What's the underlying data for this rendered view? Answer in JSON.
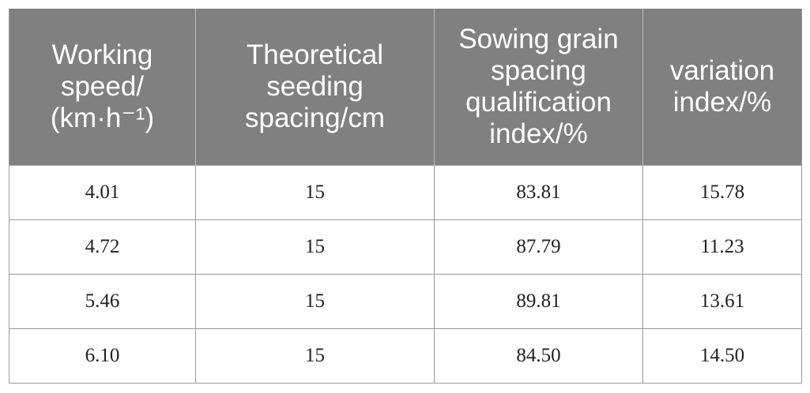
{
  "table": {
    "headers": [
      [
        "Working",
        "speed/",
        "(km·h⁻¹)"
      ],
      [
        "Theoretical",
        "seeding",
        "spacing/cm"
      ],
      [
        "Sowing grain",
        "spacing",
        "qualification",
        "index/%"
      ],
      [
        "variation",
        "index/%"
      ]
    ],
    "rows": [
      [
        "4.01",
        "15",
        "83.81",
        "15.78"
      ],
      [
        "4.72",
        "15",
        "87.79",
        "11.23"
      ],
      [
        "5.46",
        "15",
        "89.81",
        "13.61"
      ],
      [
        "6.10",
        "15",
        "84.50",
        "14.50"
      ]
    ]
  },
  "colors": {
    "header_bg": "#808080",
    "header_text": "#ffffff",
    "border": "#9a9a9a",
    "body_text": "#222222"
  }
}
